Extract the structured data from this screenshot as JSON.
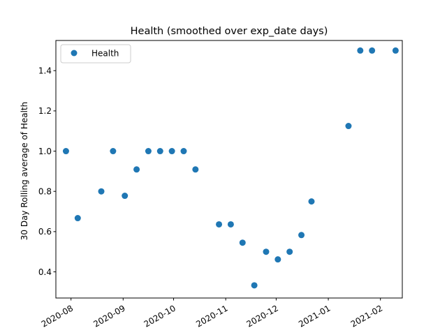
{
  "chart_data": {
    "type": "scatter",
    "title": "Health  (smoothed over exp_date days)",
    "xlabel": "",
    "ylabel": "30 Day Rolling average of Health",
    "x_type": "date",
    "xlim": [
      "2020-07-23",
      "2021-02-14"
    ],
    "ylim": [
      0.27,
      1.55
    ],
    "x_ticks": [
      "2020-08-01",
      "2020-09-01",
      "2020-10-01",
      "2020-11-01",
      "2020-12-01",
      "2021-01-01",
      "2021-02-01"
    ],
    "x_tick_labels": [
      "2020-08",
      "2020-09",
      "2020-10",
      "2020-11",
      "2020-12",
      "2021-01",
      "2021-02"
    ],
    "y_ticks": [
      0.4,
      0.6,
      0.8,
      1.0,
      1.2,
      1.4
    ],
    "y_tick_labels": [
      "0.4",
      "0.6",
      "0.8",
      "1.0",
      "1.2",
      "1.4"
    ],
    "grid": false,
    "legend_position": "upper-left",
    "series": [
      {
        "name": "Health",
        "color": "#1f77b4",
        "marker": "circle",
        "x": [
          "2020-07-29",
          "2020-08-05",
          "2020-08-19",
          "2020-08-26",
          "2020-09-02",
          "2020-09-09",
          "2020-09-16",
          "2020-09-23",
          "2020-09-30",
          "2020-10-07",
          "2020-10-14",
          "2020-10-28",
          "2020-11-04",
          "2020-11-11",
          "2020-11-18",
          "2020-11-25",
          "2020-12-02",
          "2020-12-09",
          "2020-12-16",
          "2020-12-22",
          "2021-01-13",
          "2021-01-20",
          "2021-01-27",
          "2021-02-10"
        ],
        "y": [
          1.0,
          0.667,
          0.8,
          1.0,
          0.778,
          0.909,
          1.0,
          1.0,
          1.0,
          1.0,
          0.909,
          0.636,
          0.636,
          0.545,
          0.333,
          0.5,
          0.462,
          0.5,
          0.583,
          0.75,
          1.125,
          1.5,
          1.5,
          1.5
        ]
      }
    ]
  }
}
